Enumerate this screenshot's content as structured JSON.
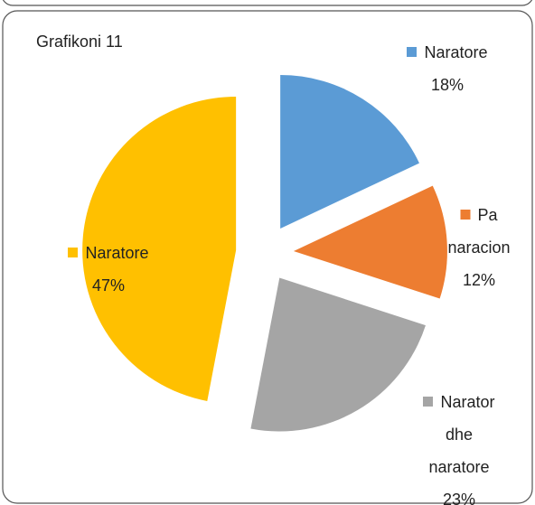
{
  "chart_data": {
    "type": "pie",
    "title": "Grafikoni 11",
    "categories": [
      "Naratore",
      "Pa naracion",
      "Narator dhe naratore",
      "Naratore"
    ],
    "values": [
      18,
      12,
      23,
      47
    ],
    "value_labels": [
      "18%",
      "12%",
      "23%",
      "47%"
    ],
    "colors": [
      "#5b9bd5",
      "#ed7d31",
      "#a5a5a5",
      "#ffc000"
    ]
  }
}
